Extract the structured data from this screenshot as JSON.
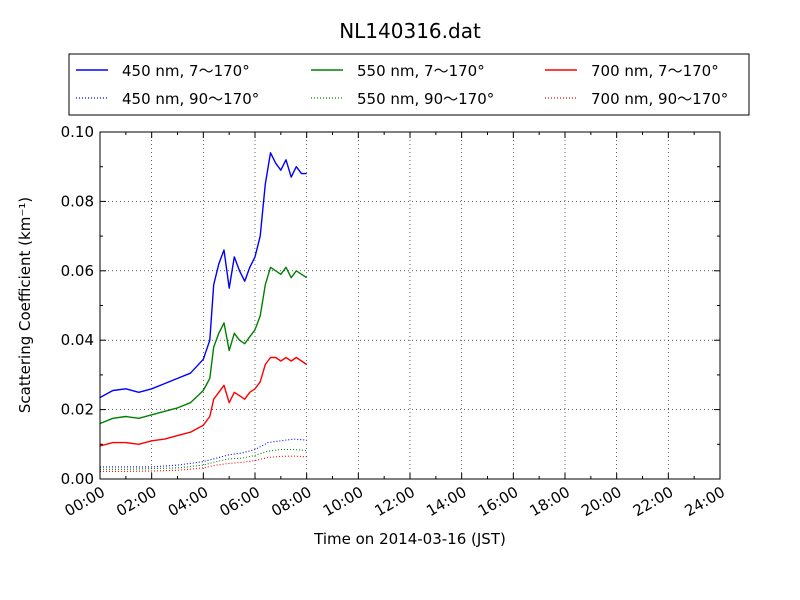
{
  "chart_data": {
    "type": "line",
    "title": "NL140316.dat",
    "xlabel": "Time on 2014-03-16 (JST)",
    "ylabel": "Scattering Coefficient (km⁻¹)",
    "xlim": [
      "00:00",
      "24:00"
    ],
    "ylim": [
      0.0,
      0.1
    ],
    "x_ticks": [
      "00:00",
      "02:00",
      "04:00",
      "06:00",
      "08:00",
      "10:00",
      "12:00",
      "14:00",
      "16:00",
      "18:00",
      "20:00",
      "22:00",
      "24:00"
    ],
    "y_ticks": [
      "0.00",
      "0.02",
      "0.04",
      "0.06",
      "0.08",
      "0.10"
    ],
    "grid": true,
    "legend_position": "top, above plot, 3 columns",
    "x_unit": "hour",
    "series": [
      {
        "name": "450 nm, 7～170°",
        "color": "#0000ff",
        "style": "solid",
        "points": [
          [
            0.0,
            0.0235
          ],
          [
            0.5,
            0.0255
          ],
          [
            1.0,
            0.026
          ],
          [
            1.5,
            0.025
          ],
          [
            2.0,
            0.026
          ],
          [
            2.5,
            0.0275
          ],
          [
            3.0,
            0.029
          ],
          [
            3.5,
            0.0305
          ],
          [
            4.0,
            0.0345
          ],
          [
            4.25,
            0.04
          ],
          [
            4.4,
            0.056
          ],
          [
            4.6,
            0.062
          ],
          [
            4.8,
            0.066
          ],
          [
            5.0,
            0.055
          ],
          [
            5.2,
            0.064
          ],
          [
            5.4,
            0.06
          ],
          [
            5.6,
            0.057
          ],
          [
            5.8,
            0.061
          ],
          [
            6.0,
            0.064
          ],
          [
            6.2,
            0.07
          ],
          [
            6.4,
            0.085
          ],
          [
            6.6,
            0.094
          ],
          [
            6.8,
            0.091
          ],
          [
            7.0,
            0.089
          ],
          [
            7.2,
            0.092
          ],
          [
            7.4,
            0.087
          ],
          [
            7.6,
            0.09
          ],
          [
            7.8,
            0.088
          ],
          [
            8.0,
            0.088
          ]
        ]
      },
      {
        "name": "550 nm, 7～170°",
        "color": "#008000",
        "style": "solid",
        "points": [
          [
            0.0,
            0.016
          ],
          [
            0.5,
            0.0175
          ],
          [
            1.0,
            0.018
          ],
          [
            1.5,
            0.0175
          ],
          [
            2.0,
            0.0185
          ],
          [
            2.5,
            0.0195
          ],
          [
            3.0,
            0.0205
          ],
          [
            3.5,
            0.022
          ],
          [
            4.0,
            0.0255
          ],
          [
            4.25,
            0.029
          ],
          [
            4.4,
            0.038
          ],
          [
            4.6,
            0.042
          ],
          [
            4.8,
            0.045
          ],
          [
            5.0,
            0.037
          ],
          [
            5.2,
            0.042
          ],
          [
            5.4,
            0.04
          ],
          [
            5.6,
            0.039
          ],
          [
            5.8,
            0.041
          ],
          [
            6.0,
            0.043
          ],
          [
            6.2,
            0.047
          ],
          [
            6.4,
            0.056
          ],
          [
            6.6,
            0.061
          ],
          [
            6.8,
            0.06
          ],
          [
            7.0,
            0.059
          ],
          [
            7.2,
            0.061
          ],
          [
            7.4,
            0.058
          ],
          [
            7.6,
            0.06
          ],
          [
            7.8,
            0.059
          ],
          [
            8.0,
            0.058
          ]
        ]
      },
      {
        "name": "700 nm, 7～170°",
        "color": "#ff0000",
        "style": "solid",
        "points": [
          [
            0.0,
            0.0095
          ],
          [
            0.5,
            0.0105
          ],
          [
            1.0,
            0.0105
          ],
          [
            1.5,
            0.01
          ],
          [
            2.0,
            0.011
          ],
          [
            2.5,
            0.0115
          ],
          [
            3.0,
            0.0125
          ],
          [
            3.5,
            0.0135
          ],
          [
            4.0,
            0.0155
          ],
          [
            4.25,
            0.018
          ],
          [
            4.4,
            0.023
          ],
          [
            4.6,
            0.025
          ],
          [
            4.8,
            0.027
          ],
          [
            5.0,
            0.022
          ],
          [
            5.2,
            0.025
          ],
          [
            5.4,
            0.024
          ],
          [
            5.6,
            0.023
          ],
          [
            5.8,
            0.025
          ],
          [
            6.0,
            0.026
          ],
          [
            6.2,
            0.028
          ],
          [
            6.4,
            0.033
          ],
          [
            6.6,
            0.035
          ],
          [
            6.8,
            0.035
          ],
          [
            7.0,
            0.034
          ],
          [
            7.2,
            0.035
          ],
          [
            7.4,
            0.034
          ],
          [
            7.6,
            0.035
          ],
          [
            7.8,
            0.034
          ],
          [
            8.0,
            0.033
          ]
        ]
      },
      {
        "name": "450 nm, 90～170°",
        "color": "#0000ff",
        "style": "dotted",
        "points": [
          [
            0.0,
            0.0035
          ],
          [
            1.0,
            0.0035
          ],
          [
            2.0,
            0.0035
          ],
          [
            3.0,
            0.004
          ],
          [
            4.0,
            0.005
          ],
          [
            4.5,
            0.006
          ],
          [
            5.0,
            0.007
          ],
          [
            5.5,
            0.0075
          ],
          [
            6.0,
            0.0085
          ],
          [
            6.5,
            0.0105
          ],
          [
            7.0,
            0.011
          ],
          [
            7.5,
            0.0115
          ],
          [
            8.0,
            0.0112
          ]
        ]
      },
      {
        "name": "550 nm, 90～170°",
        "color": "#008000",
        "style": "dotted",
        "points": [
          [
            0.0,
            0.0028
          ],
          [
            1.0,
            0.0028
          ],
          [
            2.0,
            0.003
          ],
          [
            3.0,
            0.0032
          ],
          [
            4.0,
            0.004
          ],
          [
            4.5,
            0.005
          ],
          [
            5.0,
            0.0058
          ],
          [
            5.5,
            0.006
          ],
          [
            6.0,
            0.0068
          ],
          [
            6.5,
            0.008
          ],
          [
            7.0,
            0.0085
          ],
          [
            7.5,
            0.0085
          ],
          [
            8.0,
            0.0082
          ]
        ]
      },
      {
        "name": "700 nm, 90～170°",
        "color": "#ff0000",
        "style": "dotted",
        "points": [
          [
            0.0,
            0.0022
          ],
          [
            1.0,
            0.0022
          ],
          [
            2.0,
            0.0023
          ],
          [
            3.0,
            0.0025
          ],
          [
            4.0,
            0.0032
          ],
          [
            4.5,
            0.004
          ],
          [
            5.0,
            0.0045
          ],
          [
            5.5,
            0.0048
          ],
          [
            6.0,
            0.0053
          ],
          [
            6.5,
            0.0062
          ],
          [
            7.0,
            0.0065
          ],
          [
            7.5,
            0.0066
          ],
          [
            8.0,
            0.0064
          ]
        ]
      }
    ]
  }
}
